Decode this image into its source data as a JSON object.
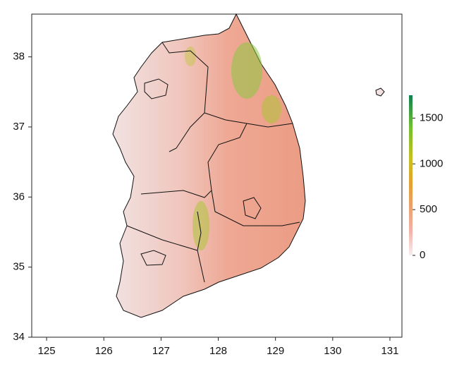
{
  "chart_data": {
    "type": "map",
    "xlim": [
      124.74,
      131.21
    ],
    "xticks": [
      125,
      126,
      127,
      128,
      129,
      130,
      131
    ],
    "ylim": [
      34,
      38.61
    ],
    "yticks": [
      34,
      35,
      36,
      37,
      38
    ],
    "colorbar_lim": [
      0,
      1750
    ],
    "colorbar_ticks": [
      0,
      500,
      1000,
      1500
    ]
  }
}
